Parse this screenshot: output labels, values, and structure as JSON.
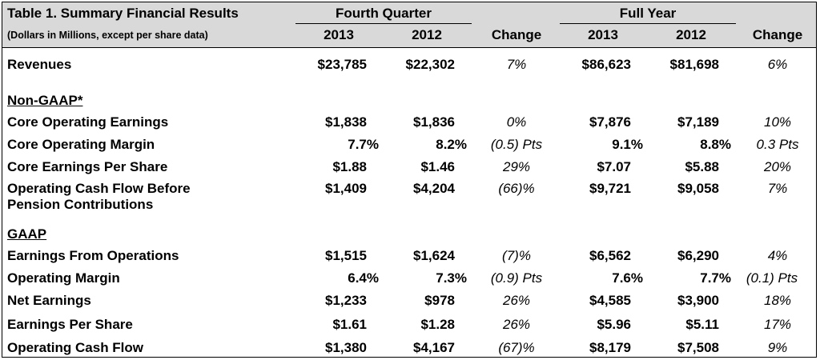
{
  "table": {
    "title": "Table 1.  Summary Financial Results",
    "subtitle": "(Dollars in Millions, except per share data)",
    "groups": [
      "Fourth Quarter",
      "Full Year"
    ],
    "columns": [
      "2013",
      "2012",
      "Change",
      "2013",
      "2012",
      "Change"
    ],
    "rows": [
      {
        "label": "Revenues",
        "q2013": "$23,785",
        "q2012": "$22,302",
        "qchg": "7%",
        "y2013": "$86,623",
        "y2012": "$81,698",
        "ychg": "6%"
      },
      {
        "section": "Non-GAAP*"
      },
      {
        "label": "Core Operating Earnings",
        "q2013": "$1,838",
        "q2012": "$1,836",
        "qchg": "0%",
        "y2013": "$7,876",
        "y2012": "$7,189",
        "ychg": "10%"
      },
      {
        "label": "Core Operating Margin",
        "q2013": "7.7%",
        "q2012": "8.2%",
        "qchg": "(0.5) Pts",
        "y2013": "9.1%",
        "y2012": "8.8%",
        "ychg": "0.3 Pts"
      },
      {
        "label": "Core Earnings Per Share",
        "q2013": "$1.88",
        "q2012": "$1.46",
        "qchg": "29%",
        "y2013": "$7.07",
        "y2012": "$5.88",
        "ychg": "20%"
      },
      {
        "label": "Operating Cash Flow Before",
        "label2": "Pension Contributions",
        "q2013": "$1,409",
        "q2012": "$4,204",
        "qchg": "(66)%",
        "y2013": "$9,721",
        "y2012": "$9,058",
        "ychg": "7%"
      },
      {
        "section": "GAAP"
      },
      {
        "label": "Earnings From Operations",
        "q2013": "$1,515",
        "q2012": "$1,624",
        "qchg": "(7)%",
        "y2013": "$6,562",
        "y2012": "$6,290",
        "ychg": "4%"
      },
      {
        "label": "Operating Margin",
        "q2013": "6.4%",
        "q2012": "7.3%",
        "qchg": "(0.9) Pts",
        "y2013": "7.6%",
        "y2012": "7.7%",
        "ychg": "(0.1) Pts"
      },
      {
        "label": "Net Earnings",
        "q2013": "$1,233",
        "q2012": "$978",
        "qchg": "26%",
        "y2013": "$4,585",
        "y2012": "$3,900",
        "ychg": "18%"
      },
      {
        "label": "Earnings Per Share",
        "q2013": "$1.61",
        "q2012": "$1.28",
        "qchg": "26%",
        "y2013": "$5.96",
        "y2012": "$5.11",
        "ychg": "17%"
      },
      {
        "label": "Operating Cash Flow",
        "q2013": "$1,380",
        "q2012": "$4,167",
        "qchg": "(67)%",
        "y2013": "$8,179",
        "y2012": "$7,508",
        "ychg": "9%"
      }
    ]
  }
}
